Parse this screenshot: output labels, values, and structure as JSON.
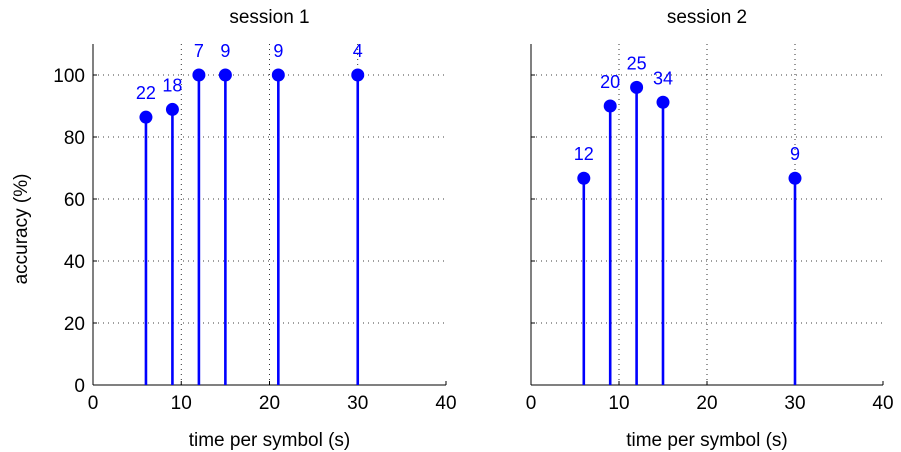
{
  "figure_ylabel": "accuracy (%)",
  "chart_data": [
    {
      "type": "stem",
      "title": "session 1",
      "xlabel": "time per symbol (s)",
      "ylabel": "accuracy (%)",
      "xlim": [
        0,
        40
      ],
      "ylim": [
        0,
        110
      ],
      "xticks": [
        0,
        10,
        20,
        30,
        40
      ],
      "yticks": [
        0,
        20,
        40,
        60,
        80,
        100
      ],
      "grid": true,
      "color": "#0000ff",
      "points": [
        {
          "x": 6,
          "y": 86.4,
          "count": "22"
        },
        {
          "x": 9,
          "y": 88.9,
          "count": "18"
        },
        {
          "x": 12,
          "y": 100,
          "count": "7"
        },
        {
          "x": 15,
          "y": 100,
          "count": "9"
        },
        {
          "x": 21,
          "y": 100,
          "count": "9"
        },
        {
          "x": 30,
          "y": 100,
          "count": "4"
        }
      ]
    },
    {
      "type": "stem",
      "title": "session 2",
      "xlabel": "time per symbol (s)",
      "ylabel": "",
      "xlim": [
        0,
        40
      ],
      "ylim": [
        0,
        110
      ],
      "xticks": [
        0,
        10,
        20,
        30,
        40
      ],
      "yticks": [
        0,
        20,
        40,
        60,
        80,
        100
      ],
      "grid": true,
      "color": "#0000ff",
      "points": [
        {
          "x": 6,
          "y": 66.7,
          "count": "12"
        },
        {
          "x": 9,
          "y": 90,
          "count": "20"
        },
        {
          "x": 12,
          "y": 96,
          "count": "25"
        },
        {
          "x": 15,
          "y": 91.2,
          "count": "34"
        },
        {
          "x": 30,
          "y": 66.7,
          "count": "9"
        }
      ]
    }
  ]
}
